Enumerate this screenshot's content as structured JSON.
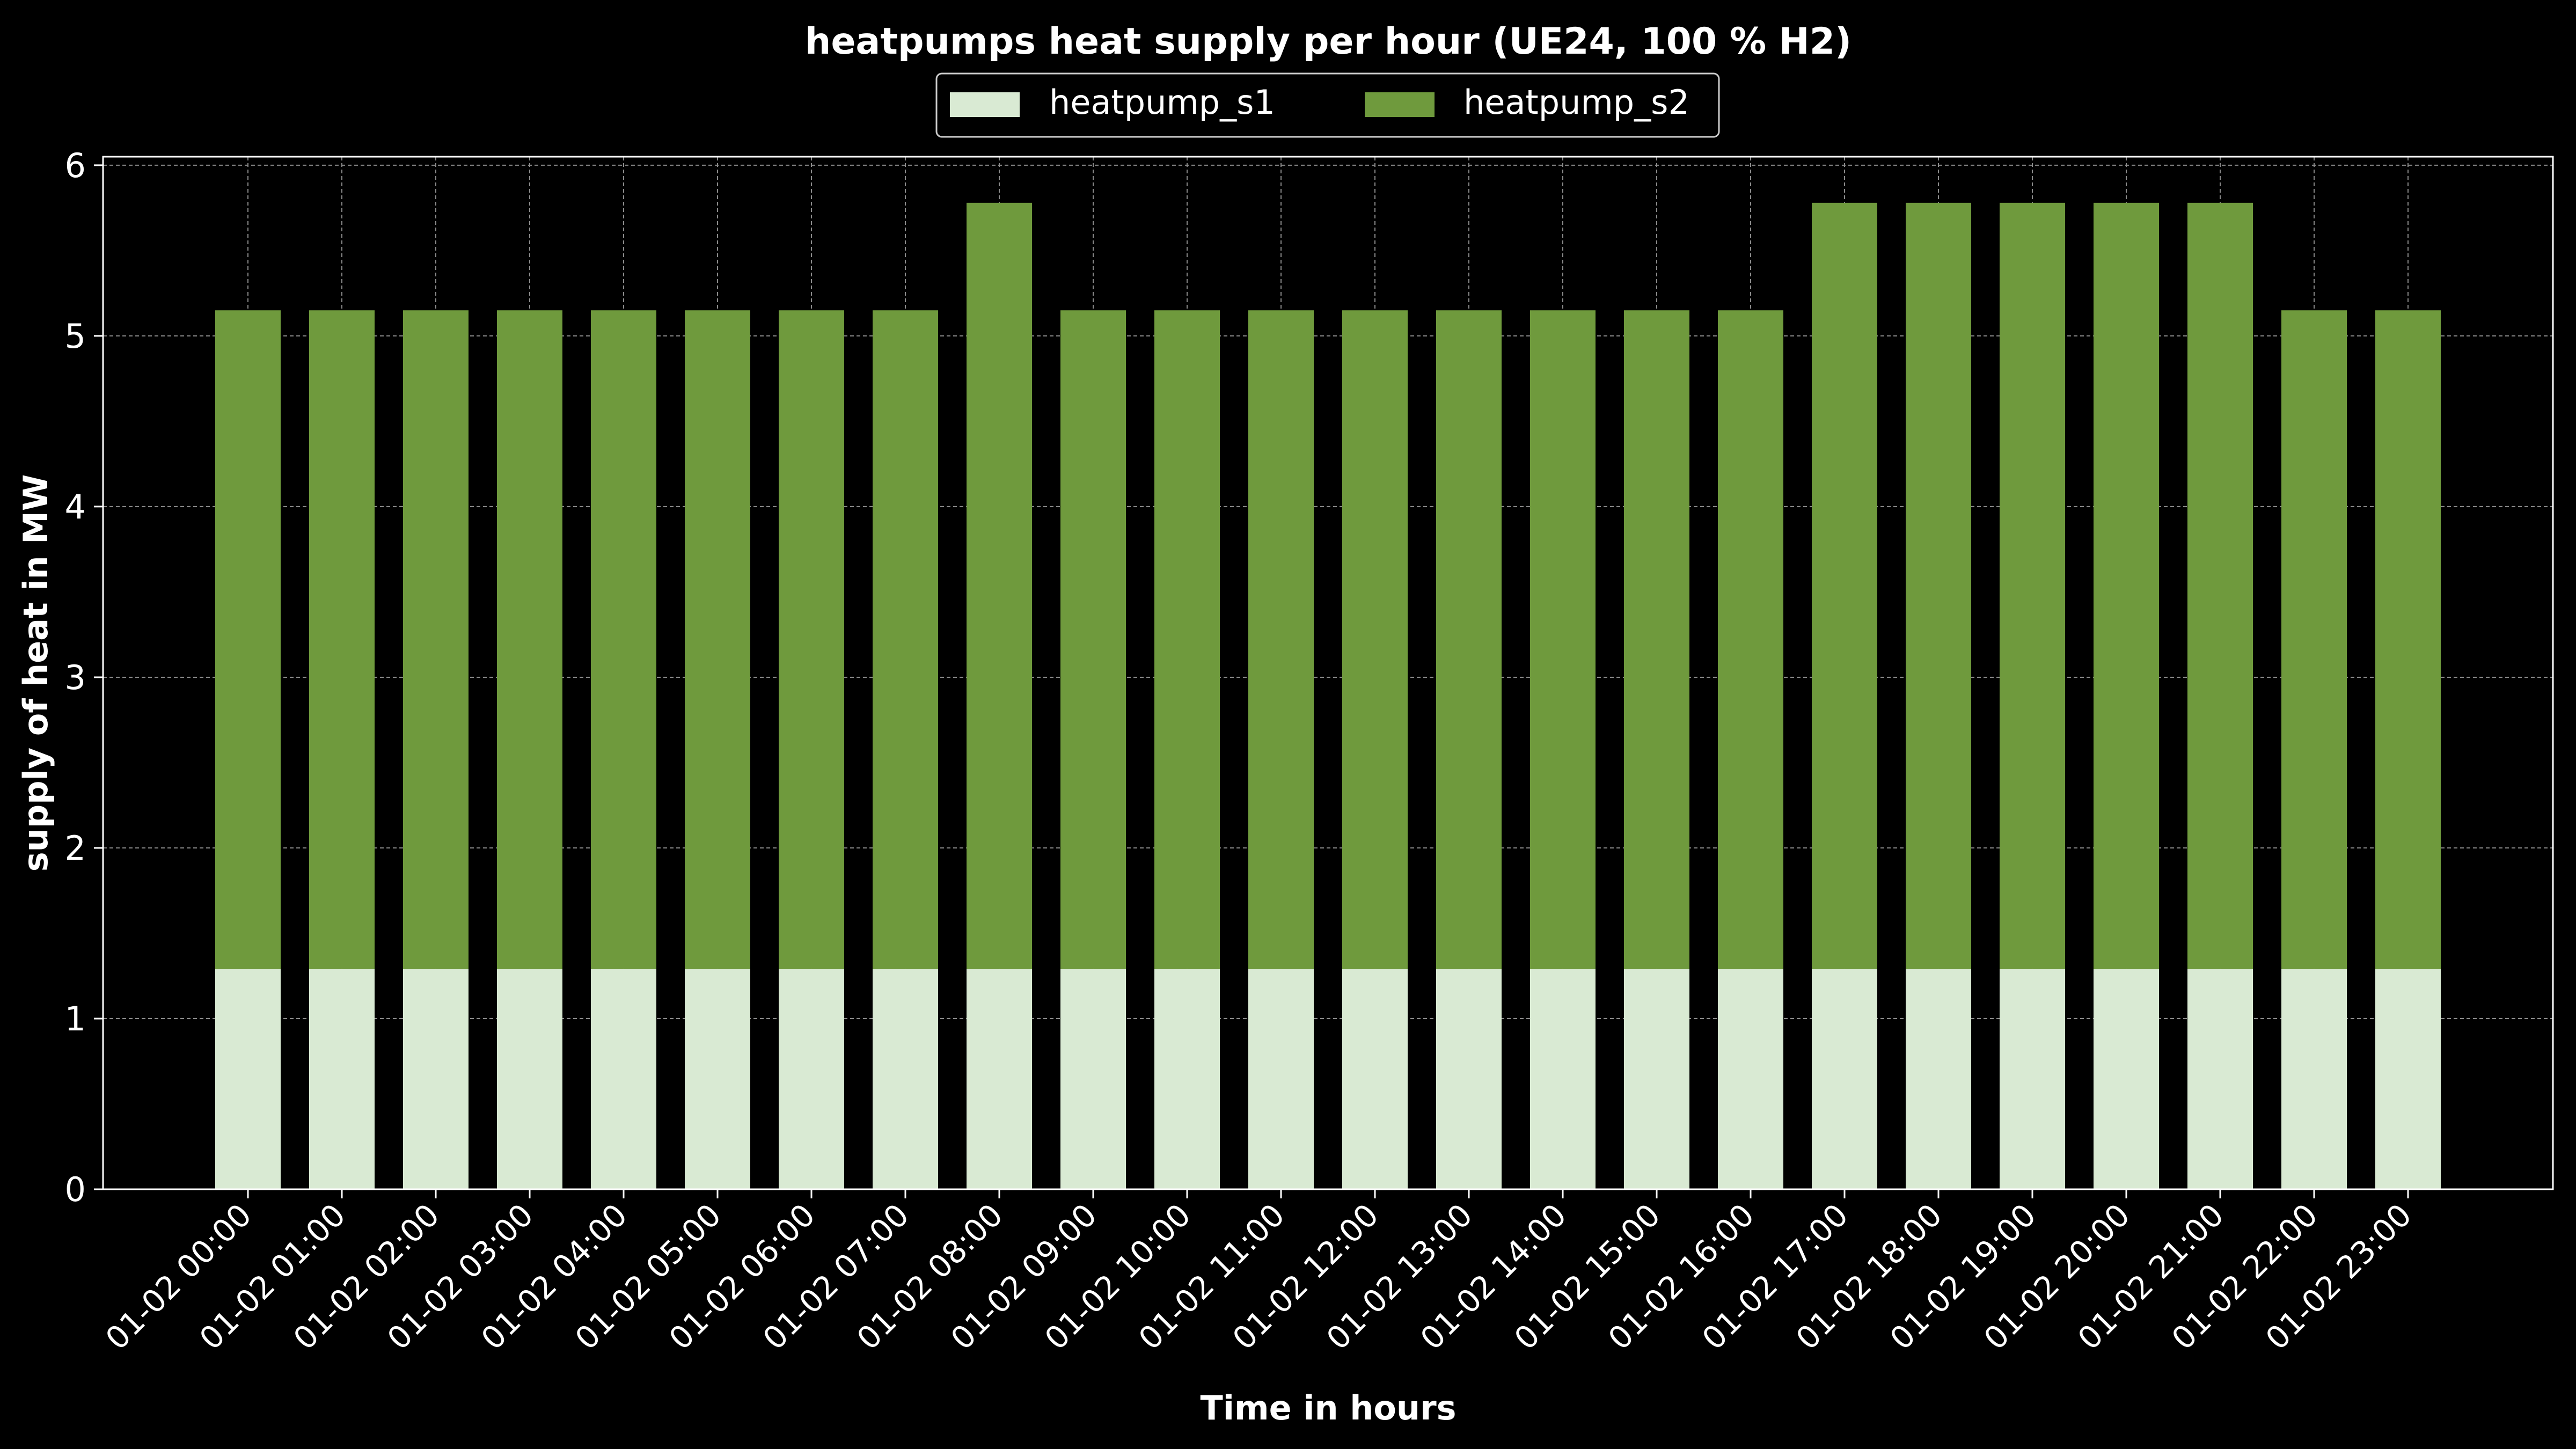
{
  "chart_data": {
    "type": "bar",
    "stacked": true,
    "title": "heatpumps heat supply per hour (UE24, 100 % H2)",
    "xlabel": "Time in hours",
    "ylabel": "supply of heat in MW",
    "ylim": [
      0,
      6.05
    ],
    "yticks": [
      0,
      1,
      2,
      3,
      4,
      5,
      6
    ],
    "grid": true,
    "legend_position": "top-center",
    "background": "#000000",
    "categories": [
      "01-02 00:00",
      "01-02 01:00",
      "01-02 02:00",
      "01-02 03:00",
      "01-02 04:00",
      "01-02 05:00",
      "01-02 06:00",
      "01-02 07:00",
      "01-02 08:00",
      "01-02 09:00",
      "01-02 10:00",
      "01-02 11:00",
      "01-02 12:00",
      "01-02 13:00",
      "01-02 14:00",
      "01-02 15:00",
      "01-02 16:00",
      "01-02 17:00",
      "01-02 18:00",
      "01-02 19:00",
      "01-02 20:00",
      "01-02 21:00",
      "01-02 22:00",
      "01-02 23:00"
    ],
    "series": [
      {
        "name": "heatpump_s1",
        "color": "#d9ead3",
        "values": [
          1.29,
          1.29,
          1.29,
          1.29,
          1.29,
          1.29,
          1.29,
          1.29,
          1.29,
          1.29,
          1.29,
          1.29,
          1.29,
          1.29,
          1.29,
          1.29,
          1.29,
          1.29,
          1.29,
          1.29,
          1.29,
          1.29,
          1.29,
          1.29
        ]
      },
      {
        "name": "heatpump_s2",
        "color": "#6f9a3d",
        "values": [
          3.86,
          3.86,
          3.86,
          3.86,
          3.86,
          3.86,
          3.86,
          3.86,
          4.49,
          3.86,
          3.86,
          3.86,
          3.86,
          3.86,
          3.86,
          3.86,
          3.86,
          4.49,
          4.49,
          4.49,
          4.49,
          4.49,
          3.86,
          3.86
        ]
      }
    ]
  }
}
